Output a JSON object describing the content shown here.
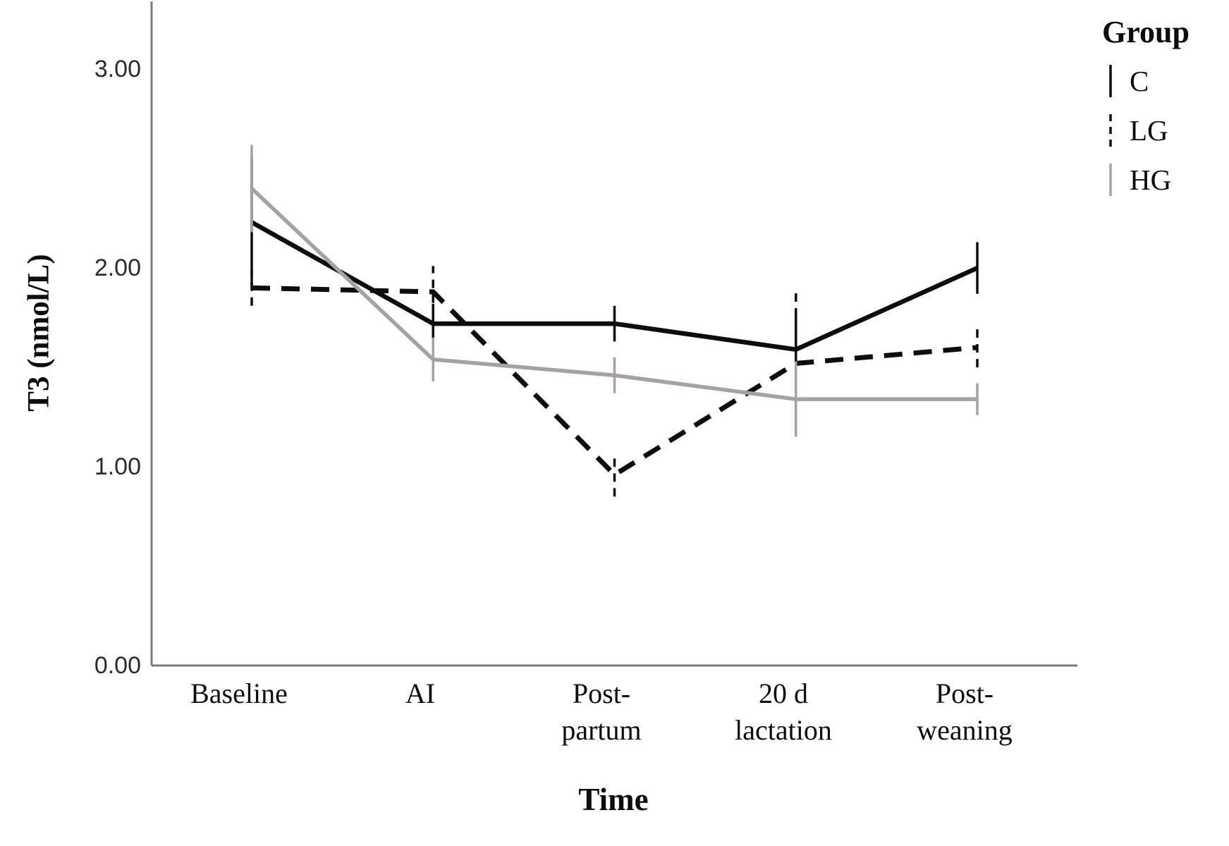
{
  "figure": {
    "y_axis_title": "T3 (nmol/L)",
    "x_axis_title": "Time"
  },
  "legend": {
    "title": "Group",
    "items": [
      {
        "label": "C",
        "style": "solid",
        "color": "#0d0d0d"
      },
      {
        "label": "LG",
        "style": "dashed",
        "color": "#0d0d0d"
      },
      {
        "label": "HG",
        "style": "solid",
        "color": "#a7a1a1"
      }
    ]
  },
  "chart_data": {
    "type": "line",
    "title": "",
    "xlabel": "Time",
    "ylabel": "T3 (nmol/L)",
    "categories": [
      "Baseline",
      "AI",
      "Post-partum",
      "20 d lactation",
      "Post-weaning"
    ],
    "xtick_lines": [
      [
        "Baseline"
      ],
      [
        "AI"
      ],
      [
        "Post-",
        "partum"
      ],
      [
        "20 d",
        "lactation"
      ],
      [
        "Post-",
        "weaning"
      ]
    ],
    "ylim": [
      0,
      3.32
    ],
    "yticks": [
      0,
      1,
      2,
      3
    ],
    "ytick_labels": [
      "0.00",
      "1.00",
      "2.00",
      "3.00"
    ],
    "grid": false,
    "legend_position": "top-right",
    "error_bars": true,
    "axis_color": "#7a7a7a",
    "series": [
      {
        "name": "C",
        "color": "#0d0d0d",
        "dash": "solid",
        "values": [
          2.23,
          1.72,
          1.72,
          1.59,
          2.0
        ],
        "yerr": [
          0.32,
          0.1,
          0.09,
          0.17,
          0.13
        ]
      },
      {
        "name": "LG",
        "color": "#0d0d0d",
        "dash": "dashed",
        "values": [
          1.9,
          1.88,
          0.96,
          1.52,
          1.6
        ],
        "yerr": [
          0.09,
          0.13,
          0.11,
          0.36,
          0.1
        ]
      },
      {
        "name": "HG",
        "color": "#a7a1a1",
        "dash": "solid",
        "values": [
          2.4,
          1.54,
          1.46,
          1.34,
          1.34
        ],
        "yerr": [
          0.22,
          0.11,
          0.09,
          0.19,
          0.08
        ]
      }
    ]
  }
}
